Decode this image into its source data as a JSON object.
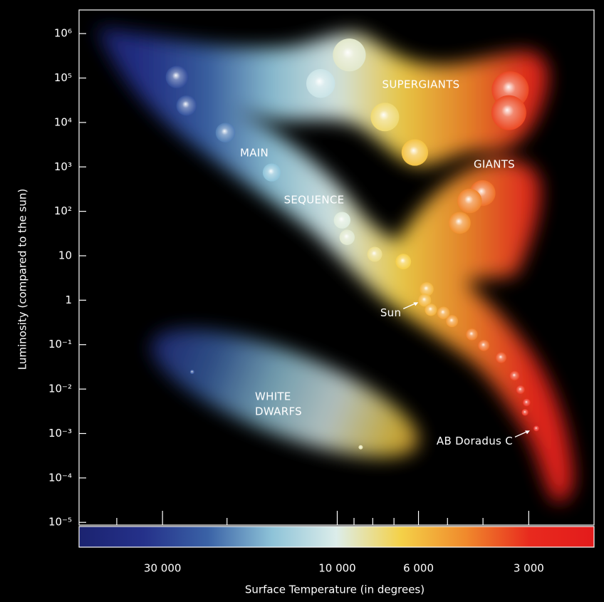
{
  "chart_data": {
    "type": "scatter",
    "x_label": "Surface Temperature (in degrees)",
    "y_label": "Luminosity (compared to the sun)",
    "log_x": true,
    "log_y": true,
    "xlim": [
      50700,
      1990
    ],
    "ylim": [
      8.7e-06,
      3400000
    ],
    "xticks": [
      {
        "value": 30000,
        "label": "30 000"
      },
      {
        "value": 10000,
        "label": "10 000"
      },
      {
        "value": 6000,
        "label": "6 000"
      },
      {
        "value": 3000,
        "label": "3 000"
      }
    ],
    "xminorticks": [
      40000,
      20000,
      9000,
      8000,
      7000,
      5000,
      4000
    ],
    "yticks": [
      {
        "value": 1e-05,
        "label": "10⁻⁵"
      },
      {
        "value": 0.0001,
        "label": "10⁻⁴"
      },
      {
        "value": 0.001,
        "label": "10⁻³"
      },
      {
        "value": 0.01,
        "label": "10⁻²"
      },
      {
        "value": 0.1,
        "label": "10⁻¹"
      },
      1,
      10,
      {
        "value": 100,
        "label": "10²"
      },
      {
        "value": 1000,
        "label": "10³"
      },
      {
        "value": 10000,
        "label": "10⁴"
      },
      {
        "value": 100000,
        "label": "10⁵"
      },
      {
        "value": 1000000,
        "label": "10⁶"
      }
    ],
    "colorscale": [
      "#1b2370",
      "#25318a",
      "#3a62a6",
      "#8ec3d8",
      "#dcedea",
      "#f4d148",
      "#f08a2c",
      "#e82a1e",
      "#e31b1b"
    ],
    "regions": {
      "supergiants": "SUPERGIANTS",
      "giants": "GIANTS",
      "main": "MAIN",
      "sequence": "SEQUENCE",
      "white_dwarfs": [
        "WHITE",
        "DWARFS"
      ]
    },
    "points": {
      "x": [
        27400,
        25800,
        20200,
        15100,
        9700,
        9400,
        7900,
        6600,
        5700,
        5770,
        5550,
        5130,
        4860,
        4290,
        3980,
        3570,
        3280,
        3160,
        3040,
        3070,
        2860,
        4010,
        4350,
        4630,
        9270,
        11100,
        7410,
        6140,
        3370,
        3400,
        24900,
        8630
      ],
      "y": [
        105000,
        24000,
        5900,
        750,
        63,
        26,
        10.8,
        7.4,
        1.77,
        1,
        0.61,
        0.52,
        0.34,
        0.17,
        0.096,
        0.051,
        0.02,
        0.0097,
        0.005,
        0.003,
        0.0013,
        257,
        171,
        55,
        330000,
        75500,
        13300,
        2110,
        54200,
        16600,
        0.0244,
        0.00049
      ],
      "labels": [
        null,
        null,
        null,
        null,
        null,
        null,
        null,
        null,
        null,
        "Sun",
        null,
        null,
        null,
        null,
        null,
        null,
        null,
        null,
        null,
        null,
        "AB Doradus C",
        null,
        null,
        null,
        null,
        null,
        null,
        null,
        null,
        null,
        null,
        null
      ]
    }
  }
}
